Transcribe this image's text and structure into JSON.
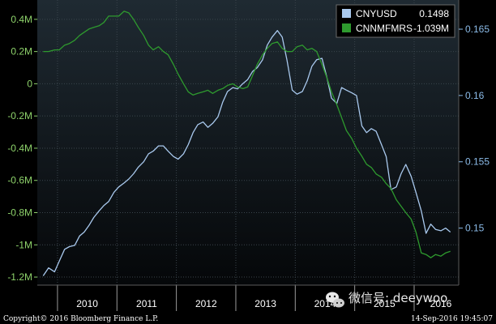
{
  "colors": {
    "background": "#000000",
    "plot_top": "#1f2a32",
    "plot_bottom": "#050709",
    "grid": "#3a444c",
    "left_axis_text": "#8ed36b",
    "right_axis_text": "#8bbbe8",
    "cnyusd_line": "#a9c9ee",
    "cnnmfmrs_line": "#2e9a2e",
    "legend_bg": "#000000",
    "legend_border": "#6a6a6a",
    "white": "#ffffff"
  },
  "legend": {
    "items": [
      {
        "name": "CNYUSD",
        "value": "0.1498",
        "color": "#a9c9ee"
      },
      {
        "name": "CNNMFMRS",
        "value": "-1.039M",
        "color": "#2e9a2e"
      }
    ]
  },
  "footer": {
    "copyright": "Copyright© 2016 Bloomberg Finance L.P.",
    "timestamp": "14-Sep-2016 19:45:07"
  },
  "watermark": {
    "text": "微信号: deeywoo",
    "icon": "wechat-icon"
  },
  "chart_data": {
    "type": "line",
    "x_axis": {
      "type": "time",
      "range": [
        2009.66,
        2016.75
      ],
      "year_labels": [
        "2010",
        "2011",
        "2012",
        "2013",
        "2014",
        "2015",
        "2016"
      ],
      "year_positions": [
        2010.0,
        2011.0,
        2012.0,
        2013.0,
        2014.0,
        2015.0,
        2016.0
      ]
    },
    "y_left": {
      "range": [
        -1.25,
        0.52
      ],
      "ticks": [
        0.4,
        0.2,
        0,
        -0.2,
        -0.4,
        -0.6,
        -0.8,
        -1,
        -1.2
      ],
      "tick_labels": [
        "0.4M",
        "0.2M",
        "0",
        "-0.2M",
        "-0.4M",
        "-0.6M",
        "-0.8M",
        "-1M",
        "-1.2M"
      ]
    },
    "y_right": {
      "range": [
        0.1457,
        0.1672
      ],
      "ticks": [
        0.165,
        0.16,
        0.155,
        0.15
      ],
      "tick_labels": [
        "0.165",
        "0.16",
        "0.155",
        "0.15"
      ]
    },
    "grid": true,
    "legend_position": "top-right",
    "series": [
      {
        "name": "CNYUSD",
        "axis": "right",
        "x": [
          2009.76,
          2009.85,
          2009.95,
          2010.03,
          2010.12,
          2010.2,
          2010.29,
          2010.37,
          2010.45,
          2010.53,
          2010.61,
          2010.7,
          2010.78,
          2010.86,
          2010.95,
          2011.03,
          2011.12,
          2011.2,
          2011.28,
          2011.36,
          2011.45,
          2011.53,
          2011.61,
          2011.7,
          2011.78,
          2011.86,
          2011.95,
          2012.03,
          2012.12,
          2012.2,
          2012.28,
          2012.36,
          2012.45,
          2012.53,
          2012.61,
          2012.7,
          2012.78,
          2012.86,
          2012.95,
          2013.03,
          2013.12,
          2013.2,
          2013.28,
          2013.36,
          2013.45,
          2013.53,
          2013.61,
          2013.7,
          2013.78,
          2013.86,
          2013.95,
          2014.03,
          2014.12,
          2014.2,
          2014.28,
          2014.36,
          2014.45,
          2014.53,
          2014.61,
          2014.7,
          2014.78,
          2014.86,
          2014.95,
          2015.03,
          2015.12,
          2015.2,
          2015.28,
          2015.36,
          2015.45,
          2015.53,
          2015.61,
          2015.7,
          2015.78,
          2015.86,
          2015.95,
          2016.03,
          2016.12,
          2016.2,
          2016.28,
          2016.36,
          2016.45,
          2016.53,
          2016.61
        ],
        "y": [
          0.1464,
          0.147,
          0.1467,
          0.1475,
          0.1484,
          0.1486,
          0.1487,
          0.1494,
          0.1497,
          0.1502,
          0.1508,
          0.1513,
          0.1517,
          0.152,
          0.1527,
          0.1531,
          0.1534,
          0.1537,
          0.1541,
          0.1546,
          0.155,
          0.1556,
          0.1558,
          0.1562,
          0.1562,
          0.1558,
          0.1554,
          0.1552,
          0.1556,
          0.1563,
          0.1572,
          0.1578,
          0.158,
          0.1576,
          0.1579,
          0.1584,
          0.1595,
          0.1603,
          0.1606,
          0.1605,
          0.1609,
          0.1612,
          0.1618,
          0.1621,
          0.1627,
          0.1638,
          0.1644,
          0.1649,
          0.1644,
          0.1627,
          0.1604,
          0.1601,
          0.1603,
          0.1611,
          0.1622,
          0.1627,
          0.1628,
          0.1614,
          0.1598,
          0.1594,
          0.1606,
          0.1604,
          0.1602,
          0.16,
          0.1577,
          0.1572,
          0.1575,
          0.1573,
          0.1563,
          0.1554,
          0.1529,
          0.1531,
          0.1541,
          0.1548,
          0.1539,
          0.1527,
          0.1513,
          0.1496,
          0.1503,
          0.1499,
          0.1498,
          0.15,
          0.1497
        ]
      },
      {
        "name": "CNNMFMRS",
        "axis": "left",
        "x": [
          2009.76,
          2009.85,
          2009.95,
          2010.03,
          2010.12,
          2010.2,
          2010.29,
          2010.37,
          2010.45,
          2010.53,
          2010.61,
          2010.7,
          2010.78,
          2010.86,
          2010.95,
          2011.03,
          2011.12,
          2011.2,
          2011.28,
          2011.36,
          2011.45,
          2011.53,
          2011.61,
          2011.7,
          2011.78,
          2011.86,
          2011.95,
          2012.03,
          2012.12,
          2012.2,
          2012.28,
          2012.36,
          2012.45,
          2012.53,
          2012.61,
          2012.7,
          2012.78,
          2012.86,
          2012.95,
          2013.03,
          2013.12,
          2013.2,
          2013.28,
          2013.36,
          2013.45,
          2013.53,
          2013.61,
          2013.7,
          2013.78,
          2013.86,
          2013.95,
          2014.03,
          2014.12,
          2014.2,
          2014.28,
          2014.36,
          2014.45,
          2014.53,
          2014.61,
          2014.7,
          2014.78,
          2014.86,
          2014.95,
          2015.03,
          2015.12,
          2015.2,
          2015.28,
          2015.36,
          2015.45,
          2015.53,
          2015.61,
          2015.7,
          2015.78,
          2015.86,
          2015.95,
          2016.03,
          2016.12,
          2016.2,
          2016.28,
          2016.36,
          2016.45,
          2016.53,
          2016.61
        ],
        "y": [
          0.2,
          0.2,
          0.21,
          0.21,
          0.24,
          0.25,
          0.27,
          0.3,
          0.32,
          0.34,
          0.35,
          0.36,
          0.38,
          0.42,
          0.42,
          0.42,
          0.45,
          0.44,
          0.4,
          0.35,
          0.3,
          0.24,
          0.21,
          0.23,
          0.2,
          0.18,
          0.12,
          0.06,
          0.0,
          -0.05,
          -0.07,
          -0.06,
          -0.05,
          -0.04,
          -0.06,
          -0.04,
          -0.03,
          -0.01,
          0.0,
          -0.02,
          -0.03,
          -0.02,
          0.05,
          0.12,
          0.18,
          0.22,
          0.25,
          0.26,
          0.22,
          0.2,
          0.2,
          0.23,
          0.24,
          0.21,
          0.22,
          0.2,
          0.12,
          0.04,
          -0.05,
          -0.13,
          -0.21,
          -0.29,
          -0.34,
          -0.4,
          -0.45,
          -0.5,
          -0.52,
          -0.56,
          -0.58,
          -0.62,
          -0.65,
          -0.72,
          -0.76,
          -0.8,
          -0.84,
          -0.92,
          -1.05,
          -1.06,
          -1.08,
          -1.06,
          -1.07,
          -1.05,
          -1.04
        ]
      }
    ]
  }
}
